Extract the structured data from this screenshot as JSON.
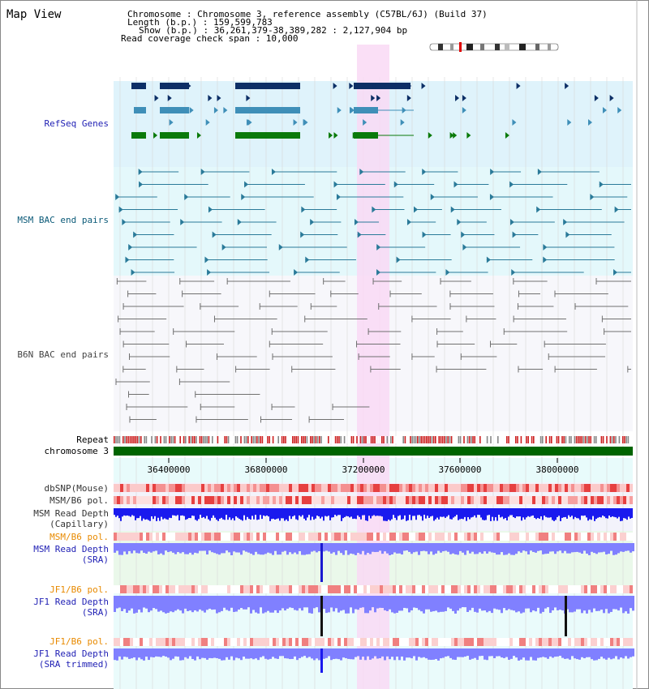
{
  "view_title": "Map View",
  "header": {
    "lines": [
      "Chromosome     : Chromosome 3, reference assembly (C57BL/6J) (Build 37)",
      "Length (b.p.) : 159,599,783",
      "Show (b.p.) : 36,261,379-38,389,282 : 2,127,904 bp",
      "Read coverage check span : 10,000"
    ]
  },
  "axis": {
    "ticks": [
      "36400000",
      "36800000",
      "37200000",
      "37600000",
      "38000000"
    ]
  },
  "tracks": {
    "refseq": "RefSeq Genes",
    "msm_bac": "MSM BAC end pairs",
    "b6n_bac": "B6N BAC end pairs",
    "repeat": "Repeat",
    "chromosome": "chromosome 3",
    "dbsnp": "dbSNP(Mouse)",
    "msm_b6_pol": "MSM/B6 pol.",
    "msm_depth_cap_1": "MSM Read Depth",
    "msm_depth_cap_2": "(Capillary)",
    "msm_b6_pol_sra": "MSM/B6 pol.",
    "msm_depth_sra_1": "MSM Read Depth",
    "msm_depth_sra_2": "(SRA)",
    "jf1_b6_pol": "JF1/B6 pol.",
    "jf1_depth_sra_1": "JF1 Read Depth",
    "jf1_depth_sra_2": "(SRA)",
    "jf1_b6_pol_2": "JF1/B6 pol.",
    "jf1_depth_trim_1": "JF1 Read Depth",
    "jf1_depth_trim_2": "(SRA trimmed)"
  },
  "colors": {
    "refseq_bg": "#dff3fb",
    "msm_bac_bg": "#e4f8fb",
    "b6n_bac_bg": "#f7f7fb",
    "highlight": "#f9d9f5",
    "gene_dark": "#0d2f66",
    "gene_mid": "#3f8fb8",
    "gene_green": "#0a7a0a",
    "bac_msm": "#2a7a99",
    "bac_b6n": "#707070",
    "chrom_green": "#006400",
    "label_blue": "#1f1fb4",
    "label_orange": "#e88a00",
    "depth_blue": "#1a1aee",
    "depth_light": "#8080ff"
  }
}
